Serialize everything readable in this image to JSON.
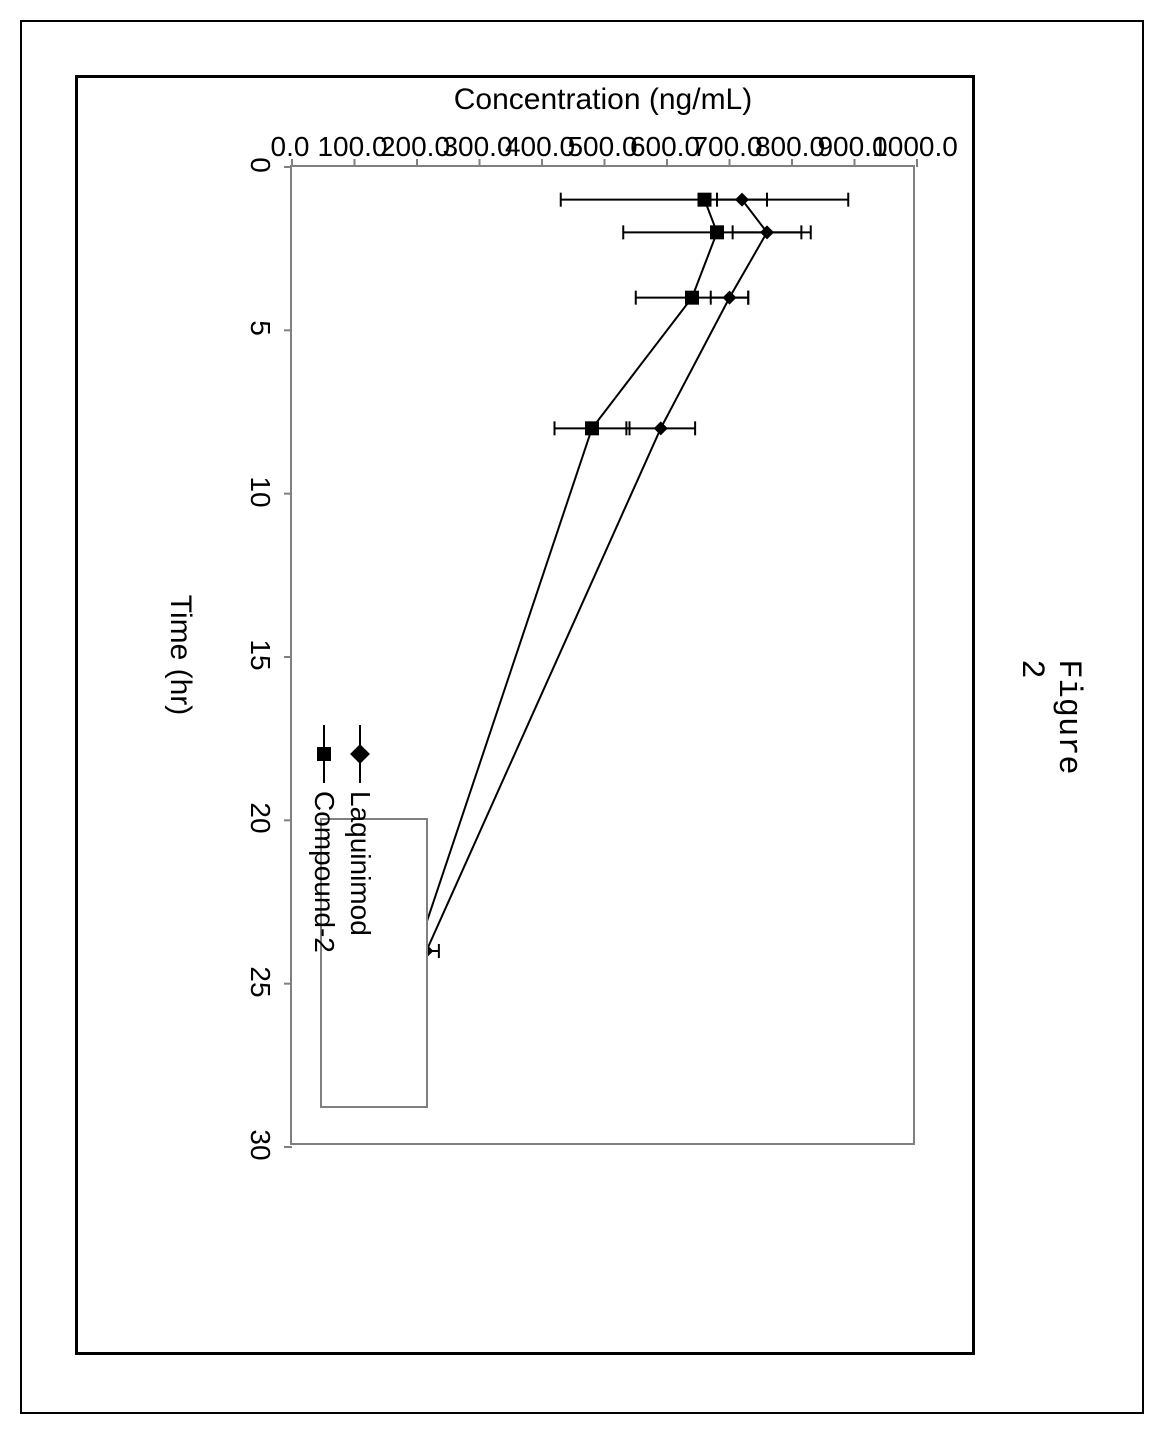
{
  "figure": {
    "caption": "Figure 2",
    "caption_fontfamily": "Courier New",
    "caption_fontsize": 32,
    "orientation_degrees": 90,
    "chart": {
      "type": "line_errorbar",
      "x_label": "Time (hr)",
      "y_label": "Concentration (ng/mL)",
      "label_fontsize": 30,
      "tick_fontsize": 28,
      "axis_color": "#808080",
      "tick_color": "#808080",
      "gridlines": false,
      "background_color": "#ffffff",
      "frame_border_color": "#000000",
      "line_color": "#000000",
      "line_width": 2,
      "errorbar_color": "#000000",
      "errorbar_cap_width": 14,
      "errorbar_width": 2,
      "xlim": [
        0,
        30
      ],
      "ylim": [
        0,
        1000
      ],
      "x_ticks": [
        0,
        5,
        10,
        15,
        20,
        25,
        30
      ],
      "y_ticks": [
        0,
        100,
        200,
        300,
        400,
        500,
        600,
        700,
        800,
        900,
        1000
      ],
      "y_tick_labels": [
        "0.0",
        "100.0",
        "200.0",
        "300.0",
        "400.0",
        "500.0",
        "600.0",
        "700.0",
        "800.0",
        "900.0",
        "1000.0"
      ],
      "legend": {
        "position": "upper_right_inside_plot",
        "border_color": "#808080",
        "background_color": "#ffffff",
        "items": [
          {
            "label": "Laquinimod",
            "marker": "diamond",
            "marker_fill": "#000000"
          },
          {
            "label": "Compound-2",
            "marker": "square",
            "marker_fill": "#000000"
          }
        ]
      },
      "series": [
        {
          "name": "Laquinimod",
          "marker": "diamond",
          "marker_size": 14,
          "marker_fill": "#000000",
          "points": [
            {
              "x": 1,
              "y": 720,
              "err": 40
            },
            {
              "x": 2,
              "y": 760,
              "err": 55
            },
            {
              "x": 4,
              "y": 700,
              "err": 30
            },
            {
              "x": 8,
              "y": 590,
              "err": 55
            },
            {
              "x": 24,
              "y": 215,
              "err": 20
            }
          ]
        },
        {
          "name": "Compound-2",
          "marker": "square",
          "marker_size": 14,
          "marker_fill": "#000000",
          "points": [
            {
              "x": 1,
              "y": 660,
              "err": 230
            },
            {
              "x": 2,
              "y": 680,
              "err": 150
            },
            {
              "x": 4,
              "y": 640,
              "err": 90
            },
            {
              "x": 8,
              "y": 480,
              "err": 60
            },
            {
              "x": 24,
              "y": 200,
              "err": 15
            }
          ]
        }
      ]
    }
  }
}
